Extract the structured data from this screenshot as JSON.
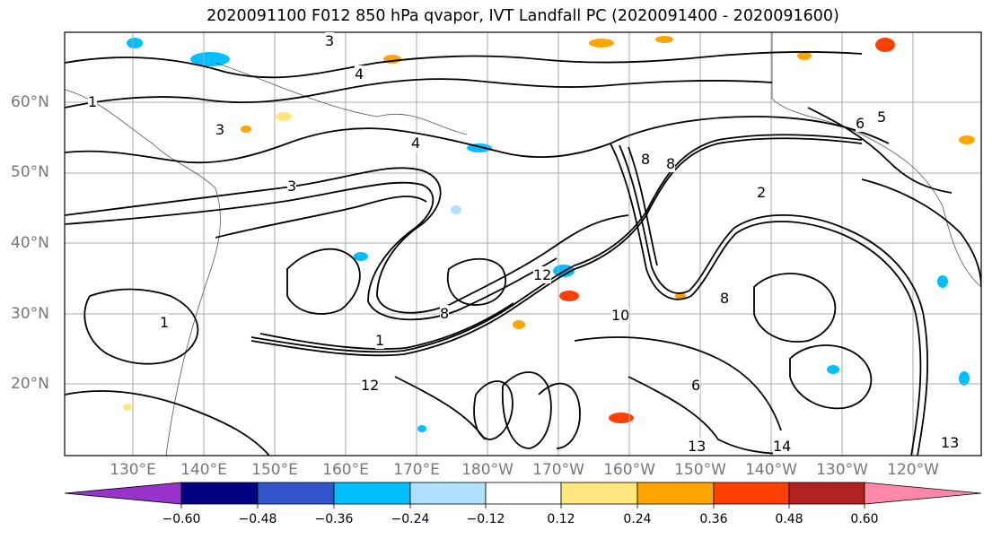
{
  "title": "2020091100 F012 850 hPa qvapor, IVT Landfall PC (2020091400 - 2020091600)",
  "map": {
    "lat_labels": [
      "60°N",
      "50°N",
      "40°N",
      "30°N",
      "20°N"
    ],
    "lon_labels": [
      "130°E",
      "140°E",
      "150°E",
      "160°E",
      "170°E",
      "180°W",
      "170°W",
      "160°W",
      "150°W",
      "140°W",
      "130°W",
      "120°W"
    ],
    "contour_labels": [
      "3",
      "4",
      "3",
      "4",
      "1",
      "6",
      "5",
      "8",
      "8",
      "12",
      "10",
      "8",
      "6",
      "13",
      "14",
      "13",
      "3",
      "2",
      "1",
      "1",
      "12",
      "8"
    ]
  },
  "colorbar": {
    "colors": [
      "#9933cc",
      "#000080",
      "#3355cc",
      "#00bfff",
      "#b0e2ff",
      "#ffffff",
      "#ffe680",
      "#ffa500",
      "#ff4000",
      "#b22222",
      "#ff88aa"
    ],
    "tick_labels": [
      "−0.60",
      "−0.48",
      "−0.36",
      "−0.24",
      "−0.12",
      "0.12",
      "0.24",
      "0.36",
      "0.48",
      "0.60"
    ]
  }
}
